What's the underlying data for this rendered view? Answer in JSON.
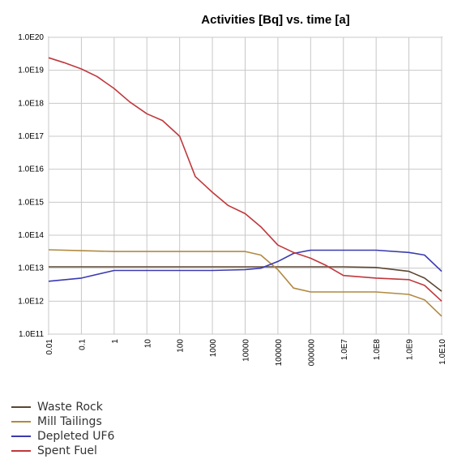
{
  "chart_data": {
    "type": "line",
    "title": "Activities [Bq] vs. time [a]",
    "xscale": "log",
    "yscale": "log",
    "x_tick_labels": [
      "0.01",
      "0.1",
      "1",
      "10",
      "100",
      "1000",
      "10000",
      "100000",
      "000000",
      "1.0E7",
      "1.0E8",
      "1.0E9",
      "1.0E10"
    ],
    "y_tick_labels": [
      "1.0E20",
      "1.0E19",
      "1.0E18",
      "1.0E17",
      "1.0E16",
      "1.0E15",
      "1.0E14",
      "1.0E13",
      "1.0E12",
      "1.0E11"
    ],
    "xlim": [
      0.01,
      10000000000
    ],
    "ylim": [
      100000000000,
      100000000000000000000
    ],
    "grid": true,
    "legend_position": "bottom-left",
    "series": [
      {
        "name": "Waste Rock",
        "color": "#5c4632",
        "x": [
          0.01,
          0.1,
          1,
          10,
          100,
          1000,
          10000,
          100000,
          1000000,
          10000000,
          100000000,
          1000000000,
          3000000000,
          10000000000
        ],
        "y": [
          11000000000000.0,
          11000000000000.0,
          11000000000000.0,
          11000000000000.0,
          11000000000000.0,
          11000000000000.0,
          11000000000000.0,
          11000000000000.0,
          11000000000000.0,
          11000000000000.0,
          10500000000000.0,
          8000000000000.0,
          5000000000000.0,
          2000000000000.0
        ]
      },
      {
        "name": "Mill Tailings",
        "color": "#b08a42",
        "x": [
          0.01,
          0.1,
          1,
          10,
          100,
          1000,
          10000,
          30000,
          100000,
          300000,
          1000000,
          10000000,
          100000000,
          1000000000,
          3000000000,
          10000000000
        ],
        "y": [
          36000000000000.0,
          34000000000000.0,
          32000000000000.0,
          32000000000000.0,
          32000000000000.0,
          32000000000000.0,
          32000000000000.0,
          25000000000000.0,
          9000000000000.0,
          2500000000000.0,
          1900000000000.0,
          1900000000000.0,
          1900000000000.0,
          1600000000000.0,
          1100000000000.0,
          350000000000.0
        ]
      },
      {
        "name": "Depleted UF6",
        "color": "#3a3ab0",
        "x": [
          0.01,
          0.1,
          1,
          10,
          100,
          1000,
          10000,
          30000,
          100000,
          300000,
          1000000,
          10000000,
          100000000,
          1000000000,
          3000000000,
          10000000000
        ],
        "y": [
          4000000000000.0,
          5000000000000.0,
          8500000000000.0,
          8500000000000.0,
          8500000000000.0,
          8500000000000.0,
          9000000000000.0,
          10000000000000.0,
          16000000000000.0,
          28000000000000.0,
          35000000000000.0,
          35000000000000.0,
          35000000000000.0,
          30000000000000.0,
          25000000000000.0,
          8000000000000.0
        ]
      },
      {
        "name": "Spent Fuel",
        "color": "#c0383c",
        "x": [
          0.01,
          0.03,
          0.1,
          0.3,
          1,
          3,
          10,
          30,
          100,
          300,
          1000,
          3000,
          10000,
          30000,
          100000,
          300000,
          1000000,
          3000000,
          10000000,
          100000000,
          1000000000,
          3000000000,
          10000000000
        ],
        "y": [
          2.4e+19,
          1.7e+19,
          1.1e+19,
          6.5e+18,
          2.8e+18,
          1.1e+18,
          4.8e+17,
          3e+17,
          1e+17,
          6000000000000000.0,
          2000000000000000.0,
          800000000000000.0,
          450000000000000.0,
          180000000000000.0,
          50000000000000.0,
          30000000000000.0,
          20000000000000.0,
          12000000000000.0,
          6000000000000.0,
          5000000000000.0,
          4500000000000.0,
          3000000000000.0,
          1000000000000.0
        ]
      }
    ]
  }
}
